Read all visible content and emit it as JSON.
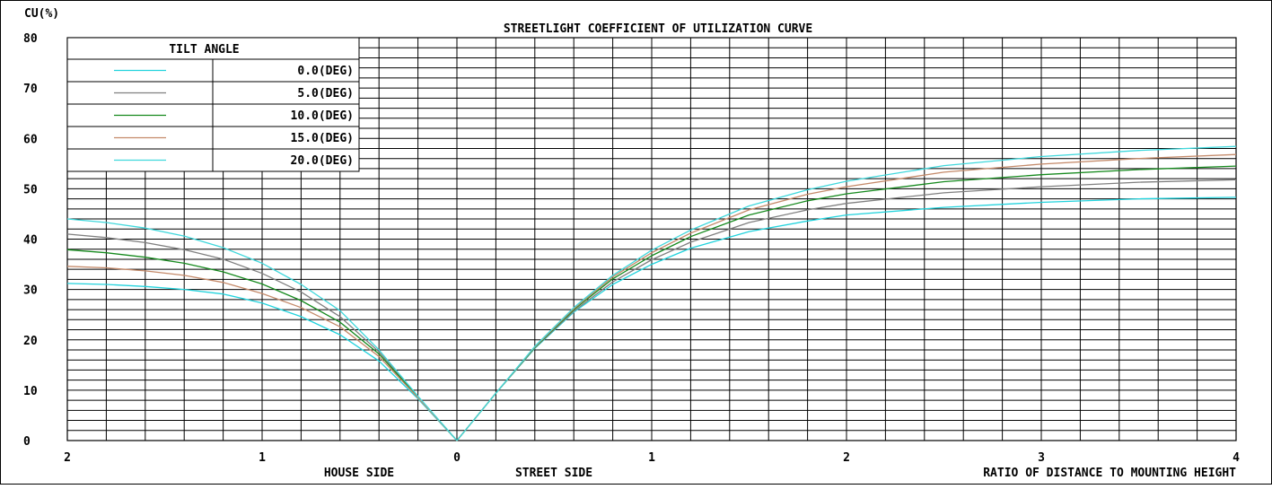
{
  "chart_data": {
    "type": "line",
    "title": "STREETLIGHT COEFFICIENT OF UTILIZATION CURVE",
    "ylabel": "CU(%)",
    "xlabel": "RATIO OF DISTANCE TO MOUNTING HEIGHT",
    "house_side_label": "HOUSE SIDE",
    "street_side_label": "STREET SIDE",
    "ylim": [
      0,
      80
    ],
    "yticks": [
      "0",
      "10",
      "20",
      "30",
      "40",
      "50",
      "60",
      "70",
      "80"
    ],
    "house_xlim": [
      0,
      2
    ],
    "street_xlim": [
      0,
      4
    ],
    "xticks": [
      {
        "value": -2,
        "label": "2"
      },
      {
        "value": -1,
        "label": "1"
      },
      {
        "value": 0,
        "label": "0"
      },
      {
        "value": 1,
        "label": "1"
      },
      {
        "value": 2,
        "label": "2"
      },
      {
        "value": 3,
        "label": "3"
      },
      {
        "value": 4,
        "label": "4"
      }
    ],
    "grid": true,
    "legend": {
      "title": "TILT ANGLE",
      "placement": "top-left"
    },
    "series": [
      {
        "name": "0.0(DEG)",
        "color": "#22d3dd",
        "house": {
          "x": [
            0,
            0.2,
            0.4,
            0.6,
            0.8,
            1.0,
            1.2,
            1.4,
            1.6,
            1.8,
            2.0
          ],
          "y": [
            0,
            8.3,
            15.8,
            21.0,
            24.6,
            27.3,
            29.1,
            30.0,
            30.6,
            31.0,
            31.2
          ]
        },
        "street": {
          "x": [
            0,
            0.2,
            0.4,
            0.6,
            0.8,
            1.0,
            1.2,
            1.5,
            1.8,
            2.0,
            2.5,
            3.0,
            3.5,
            4.0
          ],
          "y": [
            0,
            9.4,
            18.3,
            25.5,
            31.0,
            35.0,
            38.2,
            41.5,
            43.6,
            44.8,
            46.3,
            47.3,
            48.0,
            48.3
          ]
        }
      },
      {
        "name": "5.0(DEG)",
        "color": "#808080",
        "house": {
          "x": [
            0,
            0.2,
            0.4,
            0.6,
            0.8,
            1.0,
            1.2,
            1.4,
            1.6,
            1.8,
            2.0
          ],
          "y": [
            0,
            8.7,
            17.6,
            24.6,
            29.5,
            33.2,
            36.0,
            37.9,
            39.3,
            40.3,
            41.0
          ]
        },
        "street": {
          "x": [
            0,
            0.2,
            0.4,
            0.6,
            0.8,
            1.0,
            1.2,
            1.5,
            1.8,
            2.0,
            2.5,
            3.0,
            3.5,
            4.0
          ],
          "y": [
            0,
            9.4,
            18.4,
            25.7,
            31.5,
            35.9,
            39.4,
            43.3,
            45.8,
            47.1,
            49.2,
            50.4,
            51.3,
            51.8
          ]
        }
      },
      {
        "name": "10.0(DEG)",
        "color": "#168a1e",
        "house": {
          "x": [
            0,
            0.2,
            0.4,
            0.6,
            0.8,
            1.0,
            1.2,
            1.4,
            1.6,
            1.8,
            2.0
          ],
          "y": [
            0,
            8.6,
            17.2,
            23.5,
            27.8,
            31.1,
            33.5,
            35.2,
            36.4,
            37.3,
            37.9
          ]
        },
        "street": {
          "x": [
            0,
            0.2,
            0.4,
            0.6,
            0.8,
            1.0,
            1.2,
            1.5,
            1.8,
            2.0,
            2.5,
            3.0,
            3.5,
            4.0
          ],
          "y": [
            0,
            9.4,
            18.5,
            26.0,
            32.1,
            36.7,
            40.5,
            44.8,
            47.6,
            49.0,
            51.4,
            52.8,
            53.8,
            54.5
          ]
        }
      },
      {
        "name": "15.0(DEG)",
        "color": "#c48a6a",
        "house": {
          "x": [
            0,
            0.2,
            0.4,
            0.6,
            0.8,
            1.0,
            1.2,
            1.4,
            1.6,
            1.8,
            2.0
          ],
          "y": [
            0,
            8.5,
            16.7,
            22.6,
            26.4,
            29.2,
            31.4,
            32.8,
            33.7,
            34.3,
            34.6
          ]
        },
        "street": {
          "x": [
            0,
            0.2,
            0.4,
            0.6,
            0.8,
            1.0,
            1.2,
            1.5,
            1.8,
            2.0,
            2.5,
            3.0,
            3.5,
            4.0
          ],
          "y": [
            0,
            9.4,
            18.6,
            26.2,
            32.5,
            37.3,
            41.2,
            45.8,
            48.9,
            50.4,
            53.3,
            54.9,
            56.0,
            56.8
          ]
        }
      },
      {
        "name": "20.0(DEG)",
        "color": "#40d8dc",
        "house": {
          "x": [
            0,
            0.2,
            0.4,
            0.6,
            0.8,
            1.0,
            1.2,
            1.4,
            1.6,
            1.8,
            2.0
          ],
          "y": [
            0,
            8.8,
            18.0,
            25.8,
            31.0,
            35.2,
            38.3,
            40.6,
            42.2,
            43.3,
            44.0
          ]
        },
        "street": {
          "x": [
            0,
            0.2,
            0.4,
            0.6,
            0.8,
            1.0,
            1.2,
            1.5,
            1.8,
            2.0,
            2.5,
            3.0,
            3.5,
            4.0
          ],
          "y": [
            0,
            9.4,
            18.7,
            26.4,
            32.8,
            37.8,
            41.8,
            46.6,
            49.8,
            51.5,
            54.6,
            56.4,
            57.6,
            58.4
          ]
        }
      }
    ]
  }
}
